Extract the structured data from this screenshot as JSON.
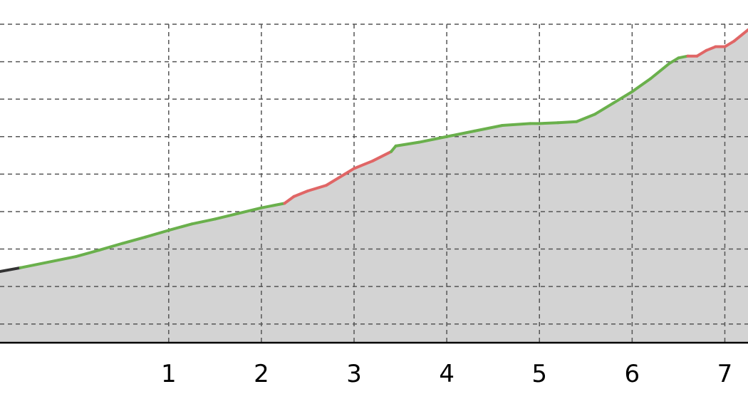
{
  "chart_data": {
    "type": "area",
    "title": "",
    "xlabel": "",
    "ylabel": "",
    "xlim": [
      -0.82,
      7.25
    ],
    "ylim": [
      0,
      8.5
    ],
    "xticks": [
      1,
      2,
      3,
      4,
      5,
      6,
      7
    ],
    "xtick_labels": [
      "1",
      "2",
      "3",
      "4",
      "5",
      "6",
      "7"
    ],
    "ygrid_values": [
      0.5,
      1.5,
      2.5,
      3.5,
      4.5,
      5.5,
      6.5,
      7.5,
      8.5
    ],
    "grid": true,
    "colors": {
      "fill": "#d3d3d3",
      "up": "#6ab04c",
      "down": "#e06666",
      "neutral": "#333333",
      "grid": "#555555",
      "axis": "#000000"
    },
    "series": [
      {
        "x": [
          -0.82,
          -0.6,
          0.0,
          0.25,
          0.5,
          0.75,
          1.0,
          1.25,
          1.5,
          1.75,
          2.0,
          2.25,
          2.35,
          2.5,
          2.7,
          2.9,
          3.0,
          3.2,
          3.4,
          3.45,
          3.7,
          4.0,
          4.3,
          4.6,
          4.9,
          5.0,
          5.2,
          5.4,
          5.6,
          5.8,
          6.0,
          6.2,
          6.4,
          6.5,
          6.6,
          6.7,
          6.8,
          6.9,
          7.0,
          7.1,
          7.25
        ],
        "y": [
          1.9,
          2.0,
          2.3,
          2.47,
          2.65,
          2.82,
          3.0,
          3.17,
          3.3,
          3.45,
          3.6,
          3.72,
          3.9,
          4.05,
          4.2,
          4.5,
          4.65,
          4.85,
          5.1,
          5.25,
          5.35,
          5.5,
          5.65,
          5.8,
          5.85,
          5.85,
          5.87,
          5.9,
          6.1,
          6.4,
          6.7,
          7.05,
          7.45,
          7.6,
          7.65,
          7.65,
          7.8,
          7.9,
          7.9,
          8.05,
          8.35
        ],
        "direction": [
          "neutral",
          "neutral",
          "up",
          "up",
          "up",
          "up",
          "up",
          "up",
          "up",
          "up",
          "up",
          "up",
          "down",
          "down",
          "down",
          "down",
          "down",
          "down",
          "down",
          "up",
          "up",
          "up",
          "up",
          "up",
          "up",
          "up",
          "up",
          "up",
          "up",
          "up",
          "up",
          "up",
          "up",
          "up",
          "up",
          "down",
          "down",
          "down",
          "down",
          "down",
          "down"
        ]
      }
    ]
  }
}
